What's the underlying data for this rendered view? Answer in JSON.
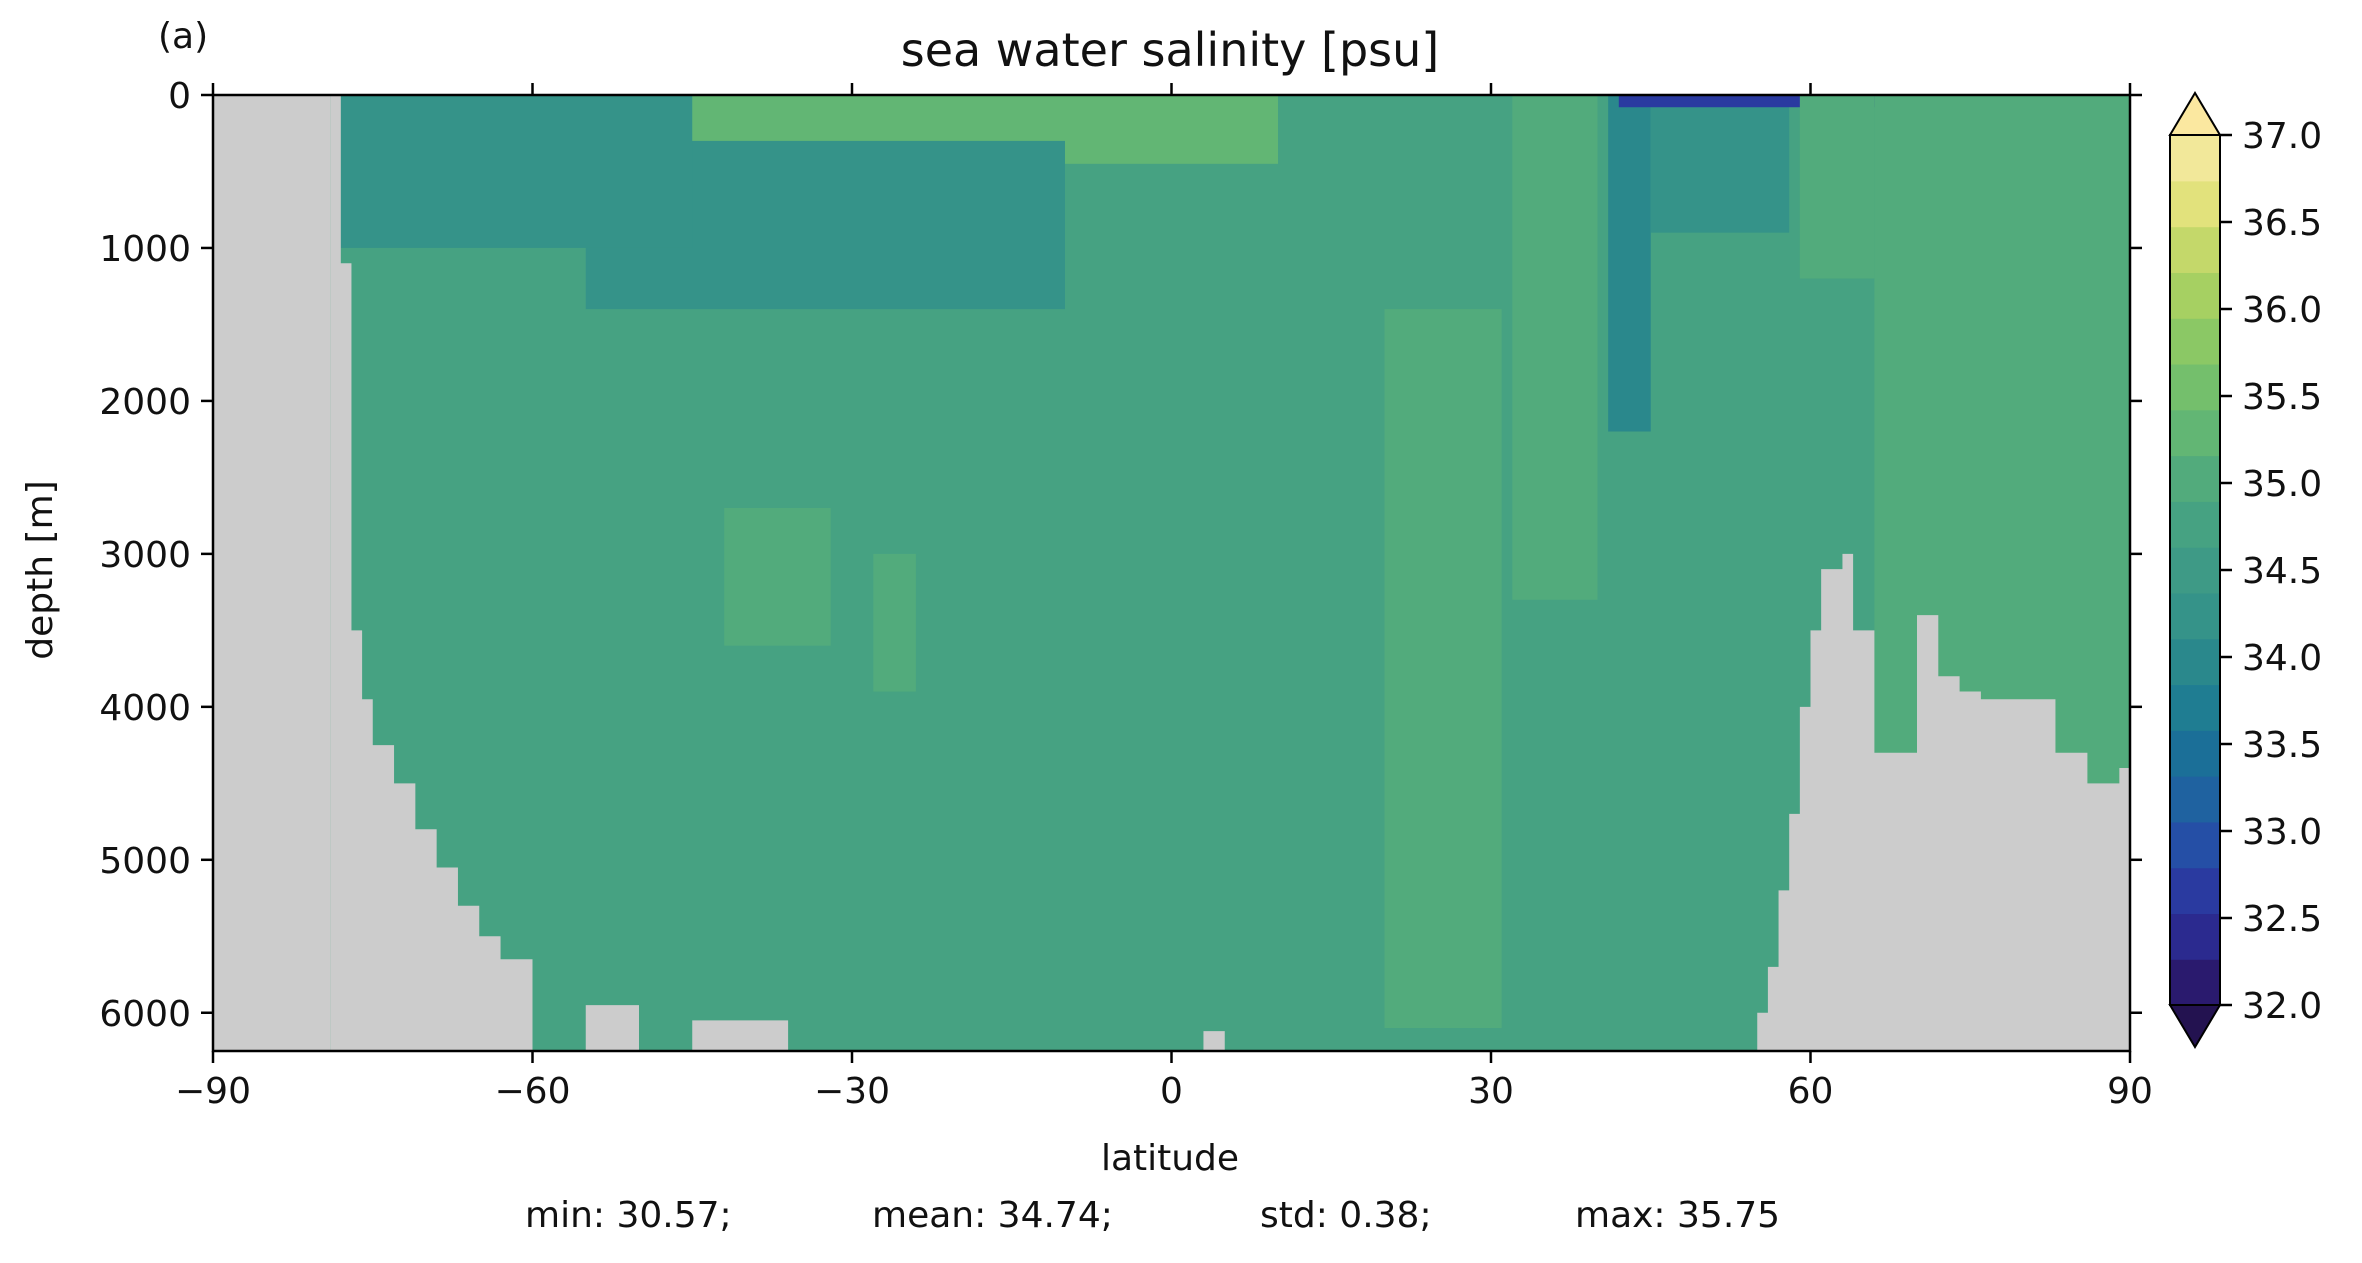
{
  "chart_data": {
    "type": "heatmap",
    "panel_label": "(a)",
    "title": "sea water salinity [psu]",
    "xlabel": "latitude",
    "ylabel": "depth [m]",
    "xlim": [
      -90,
      90
    ],
    "ylim": [
      6250,
      0
    ],
    "xticks": [
      -90,
      -60,
      -30,
      0,
      30,
      60,
      90
    ],
    "xtick_labels": [
      "−90",
      "−60",
      "−30",
      "0",
      "30",
      "60",
      "90"
    ],
    "yticks": [
      0,
      1000,
      2000,
      3000,
      4000,
      5000,
      6000
    ],
    "ytick_labels": [
      "0",
      "1000",
      "2000",
      "3000",
      "4000",
      "5000",
      "6000"
    ],
    "colorbar": {
      "min": 32.0,
      "max": 37.0,
      "step": 0.25,
      "extend": "both",
      "ticks": [
        32.0,
        32.5,
        33.0,
        33.5,
        34.0,
        34.5,
        35.0,
        35.5,
        36.0,
        36.5,
        37.0
      ],
      "tick_labels": [
        "32.0",
        "32.5",
        "33.0",
        "33.5",
        "34.0",
        "34.5",
        "35.0",
        "35.5",
        "36.0",
        "36.5",
        "37.0"
      ],
      "colors": [
        "#2a1a6e",
        "#2b2a8f",
        "#2a3aa0",
        "#254fa6",
        "#1f62a0",
        "#1b6f98",
        "#1f7d92",
        "#2a888c",
        "#359389",
        "#3e9a86",
        "#46a282",
        "#52ab7c",
        "#62b674",
        "#74bf6c",
        "#8bc865",
        "#a6d062",
        "#c4d86a",
        "#e2e27c",
        "#f2e89a"
      ],
      "under_color": "#231250",
      "over_color": "#fbe8a0"
    },
    "land_color": "#cccccc",
    "background_field_psu": 34.72,
    "anomalies": [
      {
        "name": "north-atlantic-upper-lens",
        "lat": [
          32,
          40
        ],
        "depth": [
          0,
          3300
        ],
        "value": 35.0
      },
      {
        "name": "atlantic-deep-saline-tongue",
        "lat": [
          20,
          31
        ],
        "depth": [
          1400,
          6100
        ],
        "value": 34.95
      },
      {
        "name": "subtropical-south-surface-max",
        "lat": [
          -40,
          -5
        ],
        "depth": [
          0,
          220
        ],
        "value": 35.55
      },
      {
        "name": "south-surface-saline-layer",
        "lat": [
          -50,
          10
        ],
        "depth": [
          0,
          450
        ],
        "value": 35.2
      },
      {
        "name": "antarctic-intermediate-water",
        "lat": [
          -55,
          -10
        ],
        "depth": [
          300,
          1400
        ],
        "value": 34.35
      },
      {
        "name": "southern-ocean-upper",
        "lat": [
          -78,
          -45
        ],
        "depth": [
          0,
          1000
        ],
        "value": 34.3
      },
      {
        "name": "mediterranean-outflow-column",
        "lat": [
          41,
          45
        ],
        "depth": [
          0,
          2200
        ],
        "value": 33.9
      },
      {
        "name": "north-pacific-upper-fresh",
        "lat": [
          45,
          58
        ],
        "depth": [
          0,
          900
        ],
        "value": 34.2
      },
      {
        "name": "arctic-surface-fresh",
        "lat": [
          42,
          90
        ],
        "depth": [
          0,
          80
        ],
        "value": 32.6
      },
      {
        "name": "nordic-seas-saline",
        "lat": [
          59,
          66
        ],
        "depth": [
          0,
          1200
        ],
        "value": 35.15
      },
      {
        "name": "south-deep-saline-patch",
        "lat": [
          -42,
          -32
        ],
        "depth": [
          2700,
          3600
        ],
        "value": 34.95
      },
      {
        "name": "equatorial-deep-streak",
        "lat": [
          -28,
          -24
        ],
        "depth": [
          3000,
          3900
        ],
        "value": 34.9
      },
      {
        "name": "arctic-basin-upper",
        "lat": [
          66,
          90
        ],
        "depth": [
          0,
          4500
        ],
        "value": 34.95
      }
    ],
    "land_mask": [
      {
        "lat": -90,
        "max_depth": -1
      },
      {
        "lat": -79,
        "max_depth": 0
      },
      {
        "lat": -78,
        "max_depth": 1100
      },
      {
        "lat": -77,
        "max_depth": 3500
      },
      {
        "lat": -76,
        "max_depth": 3950
      },
      {
        "lat": -75,
        "max_depth": 4250
      },
      {
        "lat": -73,
        "max_depth": 4500
      },
      {
        "lat": -71,
        "max_depth": 4800
      },
      {
        "lat": -69,
        "max_depth": 5050
      },
      {
        "lat": -67,
        "max_depth": 5300
      },
      {
        "lat": -65,
        "max_depth": 5500
      },
      {
        "lat": -63,
        "max_depth": 5650
      },
      {
        "lat": -60,
        "max_depth": 6250
      },
      {
        "lat": -55,
        "max_depth": 5950
      },
      {
        "lat": -50,
        "max_depth": 6250
      },
      {
        "lat": -45,
        "max_depth": 6050
      },
      {
        "lat": -36,
        "max_depth": 6250
      },
      {
        "lat": 0,
        "max_depth": 6250
      },
      {
        "lat": 3,
        "max_depth": 6120
      },
      {
        "lat": 5,
        "max_depth": 6250
      },
      {
        "lat": 30,
        "max_depth": 6250
      },
      {
        "lat": 50,
        "max_depth": 6250
      },
      {
        "lat": 55,
        "max_depth": 6000
      },
      {
        "lat": 56,
        "max_depth": 5700
      },
      {
        "lat": 57,
        "max_depth": 5200
      },
      {
        "lat": 58,
        "max_depth": 4700
      },
      {
        "lat": 59,
        "max_depth": 4000
      },
      {
        "lat": 60,
        "max_depth": 3500
      },
      {
        "lat": 61,
        "max_depth": 3100
      },
      {
        "lat": 63,
        "max_depth": 3000
      },
      {
        "lat": 64,
        "max_depth": 3500
      },
      {
        "lat": 66,
        "max_depth": 4300
      },
      {
        "lat": 68,
        "max_depth": 4300
      },
      {
        "lat": 70,
        "max_depth": 3400
      },
      {
        "lat": 72,
        "max_depth": 3800
      },
      {
        "lat": 74,
        "max_depth": 3900
      },
      {
        "lat": 76,
        "max_depth": 3950
      },
      {
        "lat": 81,
        "max_depth": 3950
      },
      {
        "lat": 83,
        "max_depth": 4300
      },
      {
        "lat": 86,
        "max_depth": 4500
      },
      {
        "lat": 89,
        "max_depth": 4400
      },
      {
        "lat": 90,
        "max_depth": 4400
      }
    ],
    "stats": {
      "min": "min: 30.57;",
      "mean": "mean: 34.74;",
      "std": "std: 0.38;",
      "max": "max: 35.75"
    }
  }
}
